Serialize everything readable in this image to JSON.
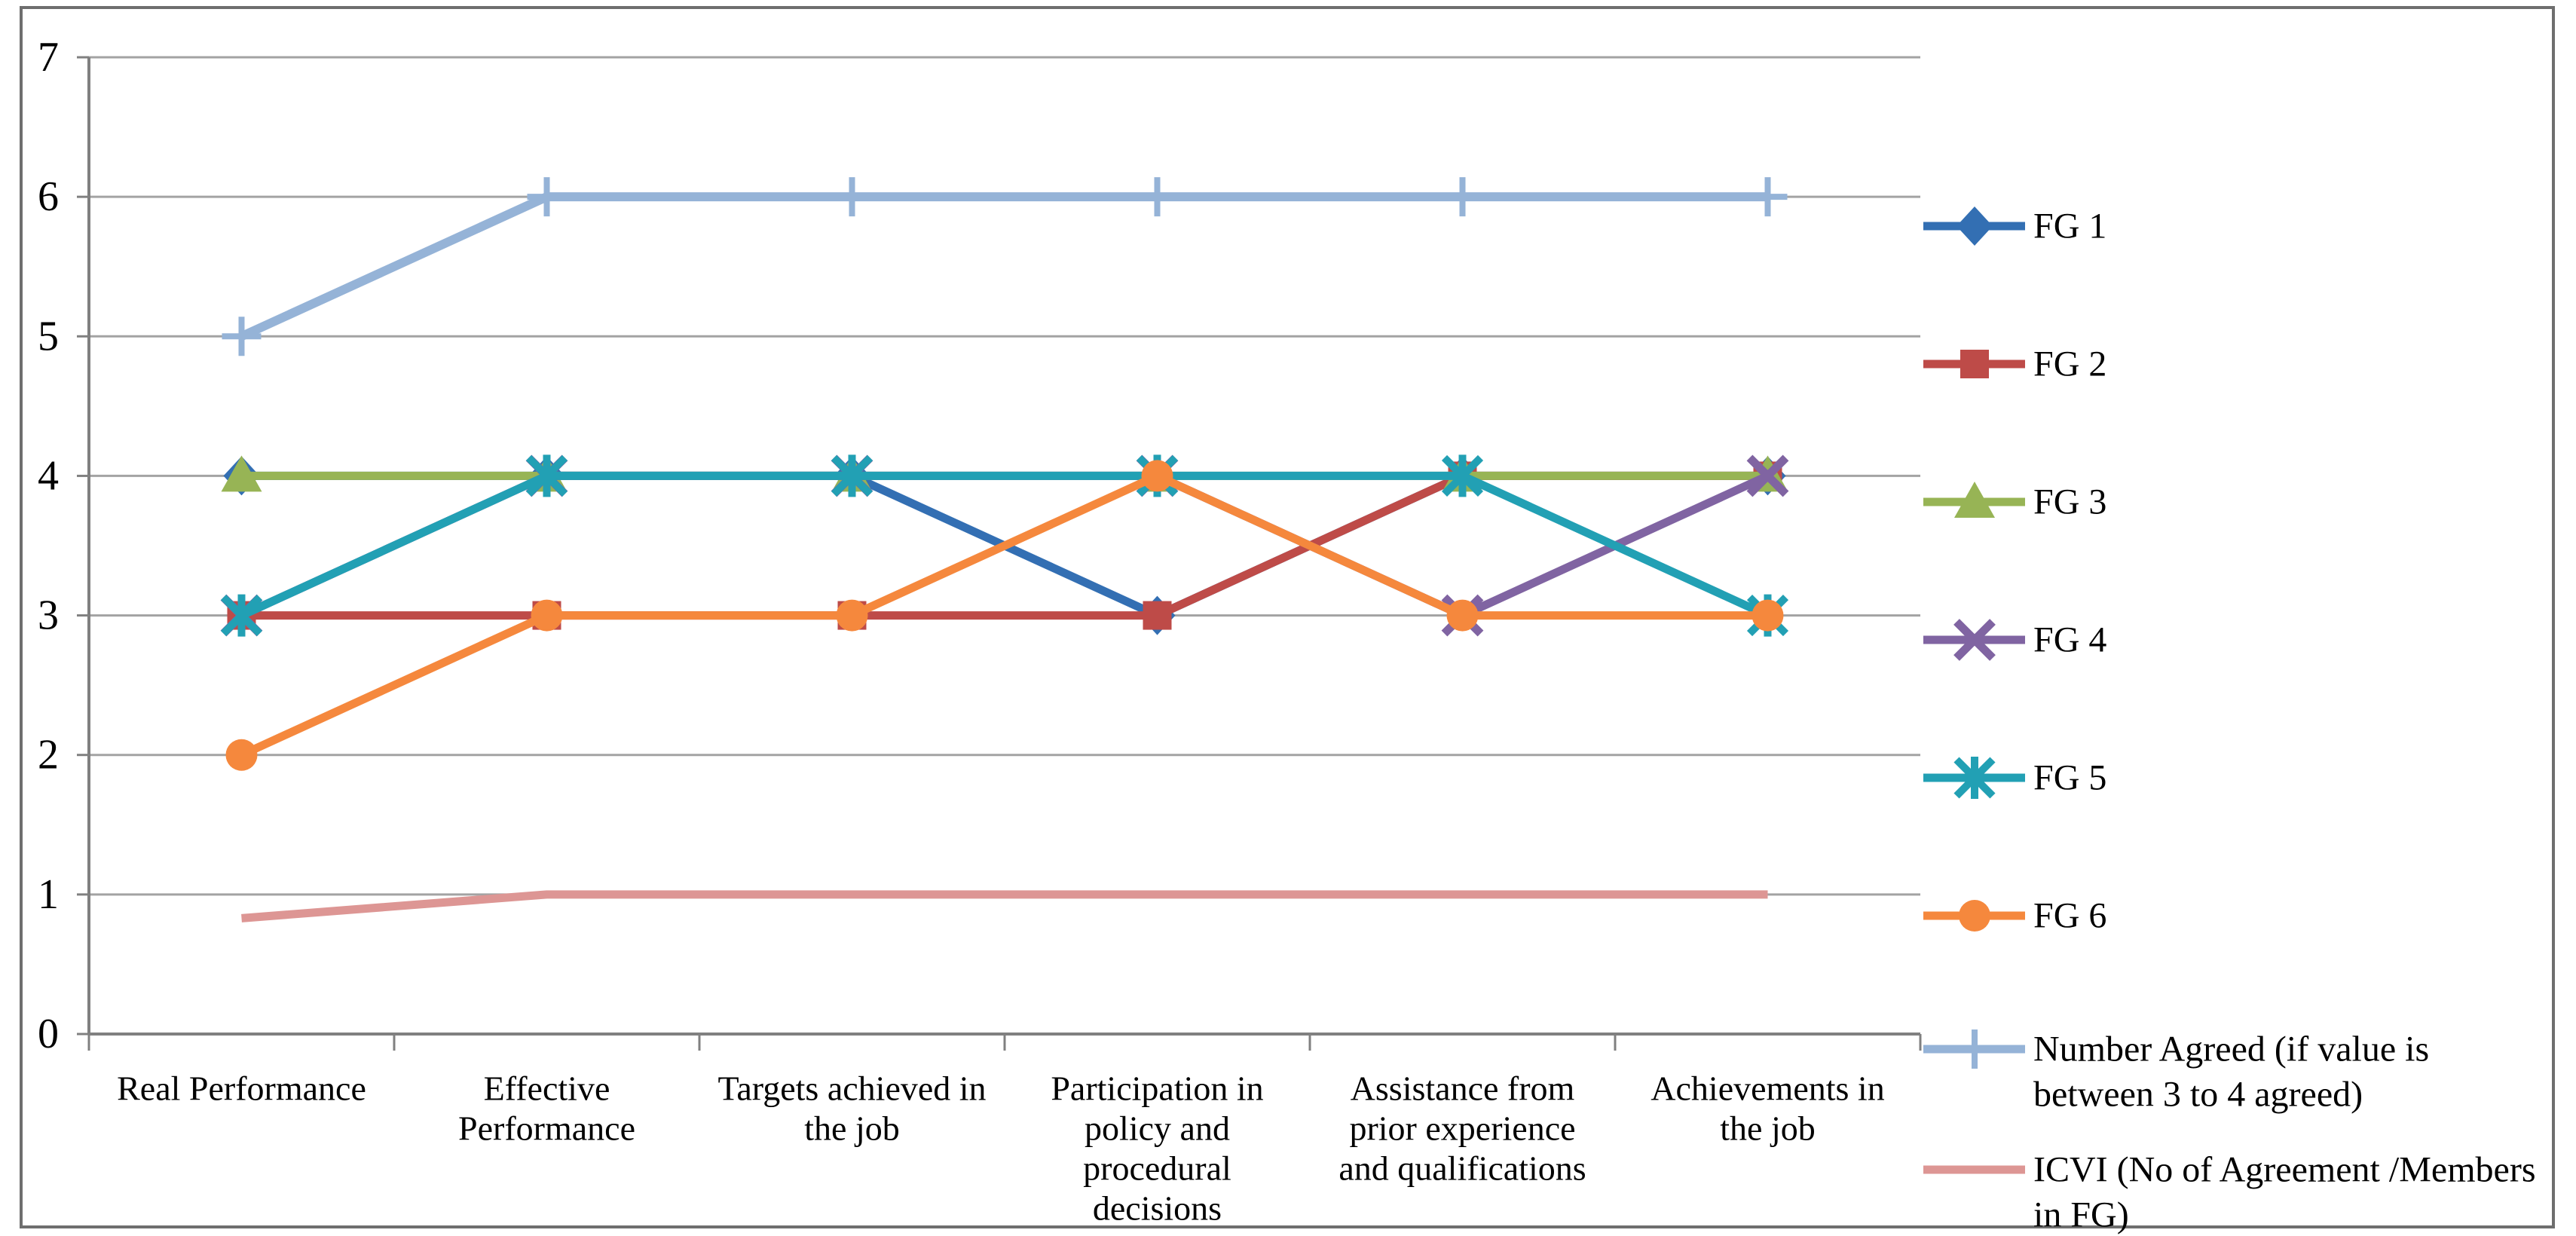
{
  "chart_data": {
    "type": "line",
    "title": "",
    "xlabel": "",
    "ylabel": "",
    "ylim": [
      0,
      7
    ],
    "yticks": [
      0,
      1,
      2,
      3,
      4,
      5,
      6,
      7
    ],
    "grid": true,
    "legend_position": "right",
    "categories": [
      "Real Performance",
      "Effective Performance",
      "Targets achieved in the job",
      "Participation in policy and procedural decisions",
      "Assistance from prior experience and qualifications",
      "Achievements in the job"
    ],
    "category_label_lines": [
      [
        "Real Performance"
      ],
      [
        "Effective",
        "Performance"
      ],
      [
        "Targets achieved in",
        "the job"
      ],
      [
        "Participation in",
        "policy and",
        "procedural",
        "decisions"
      ],
      [
        "Assistance from",
        "prior experience",
        "and qualifications"
      ],
      [
        "Achievements in",
        "the job"
      ]
    ],
    "series": [
      {
        "name": "FG 1",
        "legend_lines": [
          "FG 1"
        ],
        "values": [
          4,
          4,
          4,
          3,
          4,
          4
        ],
        "color": "#336FB3",
        "marker": "diamond"
      },
      {
        "name": "FG 2",
        "legend_lines": [
          "FG 2"
        ],
        "values": [
          3,
          3,
          3,
          3,
          4,
          4
        ],
        "color": "#BE4B48",
        "marker": "square"
      },
      {
        "name": "FG 3",
        "legend_lines": [
          "FG 3"
        ],
        "values": [
          4,
          4,
          4,
          4,
          4,
          4
        ],
        "color": "#97B455",
        "marker": "triangle"
      },
      {
        "name": "FG 4",
        "legend_lines": [
          "FG 4"
        ],
        "values": [
          3,
          4,
          4,
          4,
          3,
          4
        ],
        "color": "#8064A2",
        "marker": "x"
      },
      {
        "name": "FG 5",
        "legend_lines": [
          "FG 5"
        ],
        "values": [
          3,
          4,
          4,
          4,
          4,
          3
        ],
        "color": "#22A0B4",
        "marker": "asterisk"
      },
      {
        "name": "FG 6",
        "legend_lines": [
          "FG 6"
        ],
        "values": [
          2,
          3,
          3,
          4,
          3,
          3
        ],
        "color": "#F5883D",
        "marker": "circle"
      },
      {
        "name": "Number Agreed (if value is between 3 to 4 agreed)",
        "legend_lines": [
          "Number Agreed (if value is",
          "between 3 to 4 agreed)"
        ],
        "values": [
          5,
          6,
          6,
          6,
          6,
          6
        ],
        "color": "#95B3D7",
        "marker": "plus"
      },
      {
        "name": "ICVI (No of Agreement /Members in FG)",
        "legend_lines": [
          "ICVI (No of Agreement /Members",
          "in FG)"
        ],
        "values": [
          0.83,
          1,
          1,
          1,
          1,
          1
        ],
        "color": "#DD9694",
        "marker": "none"
      }
    ],
    "colors": {
      "grid": "#A3A3A3",
      "axis": "#808080",
      "frame": "#6E6E6E",
      "text": "#000000",
      "background": "#FFFFFF"
    }
  }
}
